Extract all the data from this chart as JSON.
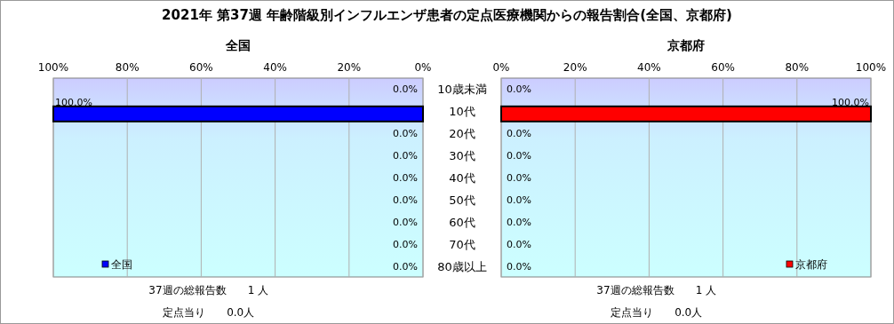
{
  "chart_data": [
    {
      "type": "bar",
      "orientation": "horizontal",
      "title": "2021年 第37週 年齢階級別インフルエンザ患者の定点医療機関からの報告割合(全国、京都府)",
      "subtitle": "全国",
      "categories": [
        "10歳未満",
        "10代",
        "20代",
        "30代",
        "40代",
        "50代",
        "60代",
        "70代",
        "80歳以上"
      ],
      "series": [
        {
          "name": "全国",
          "color": "#0000ff",
          "values": [
            0,
            100,
            0,
            0,
            0,
            0,
            0,
            0,
            0
          ],
          "value_labels": [
            "0.0%",
            "100.0%",
            "0.0%",
            "0.0%",
            "0.0%",
            "0.0%",
            "0.0%",
            "0.0%",
            "0.0%"
          ]
        }
      ],
      "xlim": [
        100,
        0
      ],
      "xticks": [
        {
          "value": 100,
          "label": "100%"
        },
        {
          "value": 80,
          "label": "80%"
        },
        {
          "value": 60,
          "label": "60%"
        },
        {
          "value": 40,
          "label": "40%"
        },
        {
          "value": 20,
          "label": "20%"
        },
        {
          "value": 0,
          "label": "0%"
        }
      ],
      "grid": "x",
      "legend": "bottom left",
      "annotations": [
        "37週の総報告数　　1 人",
        "定点当り　　0.0人"
      ]
    },
    {
      "type": "bar",
      "orientation": "horizontal",
      "subtitle": "京都府",
      "tick_labels": "x",
      "series": [
        {
          "name": "京都府",
          "color": "#ff0000",
          "values": [
            0,
            100,
            0,
            0,
            0,
            0,
            0,
            0,
            0
          ],
          "value_labels": [
            "0.0%",
            "100.0%",
            "0.0%",
            "0.0%",
            "0.0%",
            "0.0%",
            "0.0%",
            "0.0%",
            "0.0%"
          ]
        }
      ],
      "xlim": [
        0,
        100
      ],
      "xticks": [
        {
          "value": 0,
          "label": "0%"
        },
        {
          "value": 20,
          "label": "20%"
        },
        {
          "value": 40,
          "label": "40%"
        },
        {
          "value": 60,
          "label": "60%"
        },
        {
          "value": 80,
          "label": "80%"
        },
        {
          "value": 100,
          "label": "100%"
        }
      ],
      "grid": "x",
      "legend": "bottom right",
      "annotations": [
        "37週の総報告数　　1 人",
        "定点当り　　0.0人"
      ]
    }
  ]
}
